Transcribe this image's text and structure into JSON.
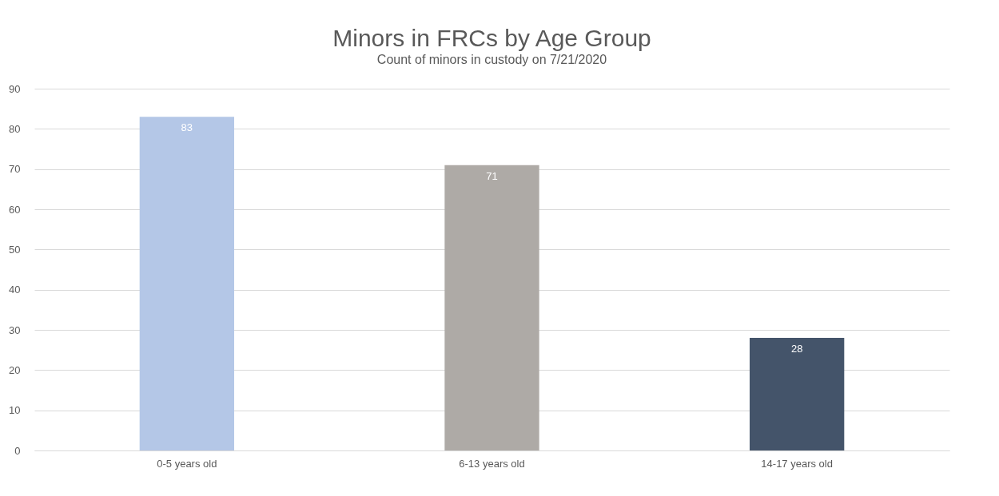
{
  "chart_data": {
    "type": "bar",
    "title": "Minors in FRCs by Age Group",
    "subtitle": "Count of minors in custody on 7/21/2020",
    "categories": [
      "0-5 years old",
      "6-13 years old",
      "14-17 years old"
    ],
    "values": [
      83,
      71,
      28
    ],
    "colors": [
      "#b4c7e7",
      "#aeaaa6",
      "#44546a"
    ],
    "ylim": [
      0,
      90
    ],
    "yticks": [
      0,
      10,
      20,
      30,
      40,
      50,
      60,
      70,
      80,
      90
    ],
    "grid": "y",
    "data_labels": true
  }
}
